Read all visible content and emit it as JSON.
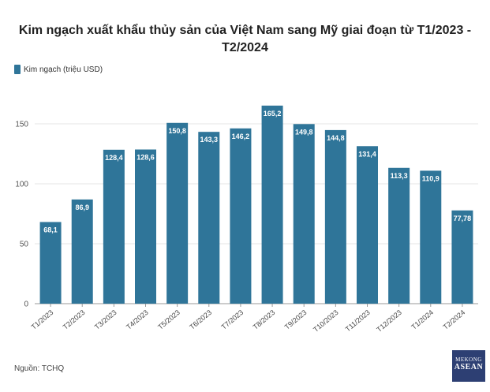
{
  "chart_data": {
    "type": "bar",
    "title": "Kim ngạch xuất khẩu thủy sản của Việt Nam sang Mỹ giai đoạn từ T1/2023 - T2/2024",
    "legend": {
      "label": "Kim ngạch (triệu USD)",
      "placement": "top-left"
    },
    "categories": [
      "T1/2023",
      "T2/2023",
      "T3/2023",
      "T4/2023",
      "T5/2023",
      "T6/2023",
      "T7/2023",
      "T8/2023",
      "T9/2023",
      "T10/2023",
      "T11/2023",
      "T12/2023",
      "T1/2024",
      "T2/2024"
    ],
    "series": [
      {
        "name": "Kim ngạch (triệu USD)",
        "values": [
          68.1,
          86.9,
          128.4,
          128.6,
          150.8,
          143.3,
          146.2,
          165.2,
          149.8,
          144.8,
          131.4,
          113.3,
          110.9,
          77.78
        ],
        "labels": [
          "68,1",
          "86,9",
          "128,4",
          "128,6",
          "150,8",
          "143,3",
          "146,2",
          "165,2",
          "149,8",
          "144,8",
          "131,4",
          "113,3",
          "110,9",
          "77,78"
        ]
      }
    ],
    "yticks": [
      "0",
      "50",
      "100",
      "150"
    ],
    "ylim": [
      0,
      180
    ],
    "grid": true,
    "bar_color": "#2f7599"
  },
  "source": "Nguồn: TCHQ",
  "logo": {
    "top": "MEKONG",
    "bottom": "ASEAN"
  }
}
